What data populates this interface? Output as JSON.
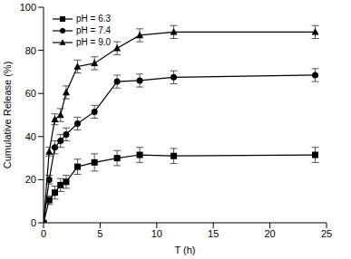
{
  "chart_data": {
    "type": "line",
    "x_label": "T (h)",
    "y_label": "Cumulative Release (%)",
    "x": [
      0,
      0.5,
      1,
      1.5,
      2,
      3,
      4.5,
      6.5,
      8.5,
      11.5,
      24
    ],
    "xlim": [
      0,
      25
    ],
    "xticks": [
      0,
      5,
      10,
      15,
      20,
      25
    ],
    "ylim": [
      0,
      100
    ],
    "yticks": [
      0,
      20,
      40,
      60,
      80,
      100
    ],
    "legend": "upper left",
    "series": [
      {
        "name": "pH = 6.3",
        "color": "#000000",
        "marker": "square",
        "line_style": "solid",
        "values": [
          0,
          10.5,
          14,
          17.5,
          19,
          26,
          28,
          30,
          31.5,
          31,
          31.5
        ],
        "errors": [
          0,
          2,
          3,
          3,
          3,
          3.5,
          4,
          3.5,
          3.5,
          3.5,
          3.5
        ]
      },
      {
        "name": "pH = 7.4",
        "color": "#000000",
        "marker": "circle",
        "line_style": "solid",
        "values": [
          0,
          20,
          35,
          38,
          41,
          46,
          51.5,
          65.5,
          66,
          67.5,
          68.5
        ],
        "errors": [
          0,
          2,
          3,
          3,
          3,
          3,
          3,
          3,
          3,
          3,
          3
        ]
      },
      {
        "name": "pH = 9.0",
        "color": "#000000",
        "marker": "triangle",
        "line_style": "solid",
        "values": [
          0,
          33,
          48,
          50,
          60.5,
          72.5,
          74,
          81,
          87,
          88.5,
          88.5
        ],
        "errors": [
          0,
          2,
          2.5,
          3,
          3,
          3,
          3,
          3,
          3,
          3,
          3
        ]
      }
    ]
  }
}
